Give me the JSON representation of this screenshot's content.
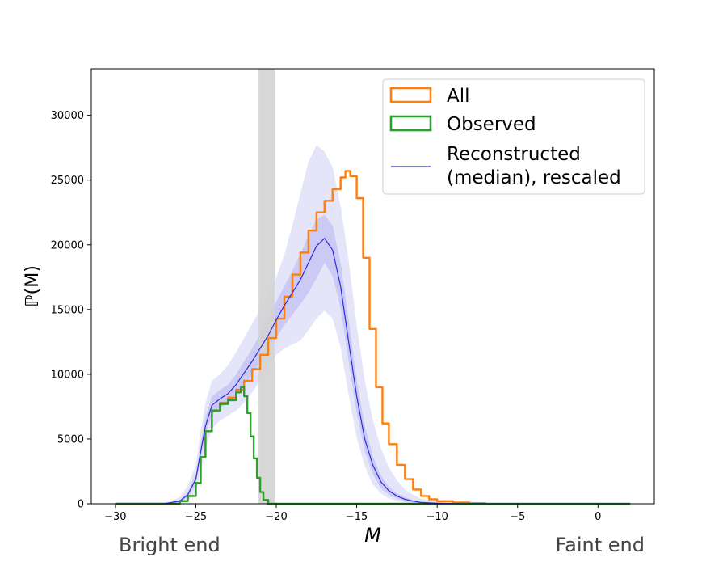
{
  "chart_data": {
    "type": "line",
    "xlabel": "M",
    "ylabel": "ℙ(M)",
    "xlim": [
      -31.5,
      3.5
    ],
    "ylim": [
      0,
      33600
    ],
    "x_ticks": [
      -30,
      -25,
      -20,
      -15,
      -10,
      -5,
      0
    ],
    "x_tick_labels": [
      "−30",
      "−25",
      "−20",
      "−15",
      "−10",
      "−5",
      "0"
    ],
    "y_ticks": [
      0,
      5000,
      10000,
      15000,
      20000,
      25000,
      30000
    ],
    "y_tick_labels": [
      "0",
      "5000",
      "10000",
      "15000",
      "20000",
      "25000",
      "30000"
    ],
    "shaded_band": {
      "x_range": [
        -21.1,
        -20.1
      ],
      "color": "#d3d3d3"
    },
    "legend_position": "top-right",
    "legend": [
      {
        "label": "All",
        "style": "histogram-step",
        "color": "#ff7f0e"
      },
      {
        "label": "Observed",
        "style": "histogram-step",
        "color": "#2ca02c"
      },
      {
        "label": "Reconstructed",
        "label2": "(median), rescaled",
        "style": "line",
        "color": "#2b2bd9"
      }
    ],
    "series": [
      {
        "name": "All",
        "kind": "histogram-step",
        "color": "#ff7f0e",
        "x": [
          -30,
          -27,
          -26,
          -25.5,
          -25,
          -24.7,
          -24.4,
          -24,
          -23.5,
          -23,
          -22.5,
          -22,
          -21.5,
          -21,
          -20.5,
          -20,
          -19.5,
          -19,
          -18.5,
          -18,
          -17.5,
          -17,
          -16.5,
          -16,
          -15.7,
          -15.4,
          -15,
          -14.6,
          -14.2,
          -13.8,
          -13.4,
          -13,
          -12.5,
          -12,
          -11.5,
          -11,
          -10.5,
          -10,
          -9,
          -8,
          -7
        ],
        "y": [
          0,
          0,
          200,
          600,
          1600,
          3600,
          5600,
          7200,
          7800,
          8200,
          8800,
          9500,
          10400,
          11500,
          12800,
          14300,
          16000,
          17700,
          19400,
          21100,
          22500,
          23400,
          24300,
          25200,
          25700,
          25300,
          23600,
          19000,
          13500,
          9000,
          6200,
          4600,
          3000,
          1900,
          1100,
          600,
          350,
          200,
          100,
          40,
          0
        ]
      },
      {
        "name": "Observed",
        "kind": "histogram-step",
        "color": "#2ca02c",
        "x": [
          -30,
          -27,
          -26,
          -25.5,
          -25,
          -24.7,
          -24.4,
          -24,
          -23.5,
          -23,
          -22.5,
          -22.2,
          -22,
          -21.8,
          -21.6,
          -21.4,
          -21.2,
          -21,
          -20.8,
          -20.5,
          -20,
          2
        ],
        "y": [
          0,
          0,
          200,
          600,
          1600,
          3600,
          5600,
          7200,
          7700,
          8000,
          8600,
          9000,
          8300,
          7000,
          5200,
          3500,
          2000,
          900,
          300,
          0,
          0,
          0
        ]
      },
      {
        "name": "Reconstructed (median), rescaled",
        "kind": "line",
        "color": "#2b2bd9",
        "x": [
          -30,
          -27,
          -26,
          -25.5,
          -25,
          -24.7,
          -24.4,
          -24,
          -23.5,
          -23,
          -22.5,
          -22,
          -21.5,
          -21,
          -20.5,
          -20,
          -19.5,
          -19,
          -18.5,
          -18,
          -17.5,
          -17,
          -16.5,
          -16,
          -15.5,
          -15,
          -14.5,
          -14,
          -13.5,
          -13,
          -12.5,
          -12,
          -11.5,
          -11,
          -10,
          -9,
          -8,
          -5,
          2
        ],
        "y": [
          0,
          0,
          200,
          700,
          1900,
          4000,
          6000,
          7600,
          8100,
          8500,
          9200,
          10100,
          11000,
          12000,
          13000,
          14200,
          15300,
          16300,
          17300,
          18600,
          19900,
          20500,
          19600,
          16800,
          12500,
          8300,
          5000,
          3000,
          1700,
          1000,
          600,
          350,
          200,
          100,
          40,
          10,
          0,
          0,
          0
        ],
        "inner_band_upper": [
          0,
          0,
          300,
          900,
          2300,
          4600,
          6700,
          8300,
          8800,
          9200,
          10000,
          11000,
          12000,
          13100,
          14300,
          15600,
          16800,
          18000,
          19300,
          20700,
          22000,
          22300,
          21500,
          18600,
          14200,
          9600,
          6000,
          3700,
          2200,
          1300,
          800,
          500,
          300,
          150,
          60,
          20,
          0,
          0,
          0
        ],
        "inner_band_lower": [
          0,
          0,
          100,
          500,
          1500,
          3400,
          5300,
          6900,
          7400,
          7800,
          8400,
          9200,
          10000,
          10900,
          11800,
          12800,
          13800,
          14600,
          15400,
          16300,
          17400,
          18600,
          17600,
          15100,
          11000,
          7000,
          4100,
          2300,
          1200,
          700,
          400,
          200,
          100,
          50,
          20,
          0,
          0,
          0,
          0
        ],
        "outer_band_upper": [
          0,
          0,
          500,
          1400,
          3000,
          5600,
          7800,
          9500,
          10000,
          10700,
          11700,
          12800,
          13900,
          15000,
          16200,
          17500,
          19200,
          21500,
          24000,
          26400,
          27700,
          27200,
          26000,
          23000,
          18800,
          13800,
          9500,
          6500,
          4300,
          2800,
          1800,
          1100,
          700,
          400,
          150,
          60,
          20,
          0,
          0
        ],
        "outer_band_lower": [
          0,
          0,
          0,
          200,
          900,
          2400,
          4200,
          5800,
          6400,
          6800,
          7200,
          7800,
          8600,
          9500,
          10500,
          11500,
          12000,
          12300,
          12600,
          13400,
          14300,
          14900,
          14300,
          12100,
          8400,
          5100,
          2900,
          1500,
          800,
          400,
          200,
          100,
          50,
          20,
          0,
          0,
          0,
          0,
          0
        ]
      }
    ]
  },
  "annotations": {
    "bright_end": "Bright end",
    "faint_end": "Faint end"
  }
}
